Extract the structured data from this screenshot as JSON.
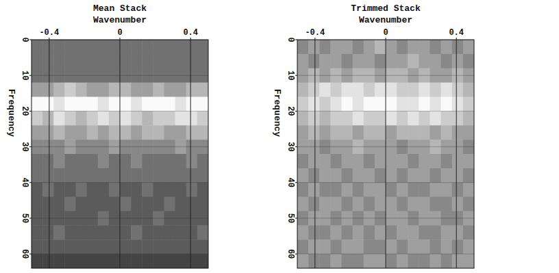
{
  "chart_data": [
    {
      "type": "heatmap",
      "title": "Mean Stack",
      "x_label": "Wavenumber",
      "y_label": "Frequency",
      "xlim": [
        -0.5,
        0.5
      ],
      "ylim": [
        0,
        64
      ],
      "xticks": [
        -0.4,
        0,
        0.4
      ],
      "yticks": [
        0,
        10,
        20,
        30,
        40,
        50,
        60
      ],
      "grid": true,
      "zlim": [
        0,
        9
      ],
      "x_bins": [
        -0.5,
        -0.4375,
        -0.375,
        -0.3125,
        -0.25,
        -0.1875,
        -0.125,
        -0.0625,
        0,
        0.0625,
        0.125,
        0.1875,
        0.25,
        0.3125,
        0.375,
        0.4375,
        0.5
      ],
      "y_bins": [
        0,
        4,
        8,
        12,
        16,
        20,
        24,
        28,
        32,
        36,
        40,
        44,
        48,
        52,
        56,
        60,
        64
      ],
      "cells": [
        [
          3,
          3,
          3,
          3,
          3,
          3,
          3,
          3,
          3,
          3,
          3,
          3,
          3,
          3,
          3,
          3
        ],
        [
          3,
          3,
          3,
          3,
          3,
          3,
          3,
          3,
          3,
          3,
          3,
          3,
          3,
          3,
          3,
          3
        ],
        [
          3,
          3,
          3,
          3,
          3,
          3,
          3,
          3,
          3,
          3,
          3,
          3,
          3,
          3,
          3,
          3
        ],
        [
          5,
          5,
          6,
          7,
          6,
          5,
          5,
          6,
          6,
          5,
          5,
          6,
          5,
          5,
          6,
          6
        ],
        [
          9,
          9,
          8,
          9,
          9,
          9,
          8,
          9,
          9,
          8,
          9,
          9,
          9,
          8,
          9,
          9
        ],
        [
          7,
          6,
          8,
          7,
          6,
          7,
          8,
          7,
          8,
          7,
          6,
          7,
          7,
          8,
          8,
          7
        ],
        [
          5,
          5,
          6,
          5,
          5,
          6,
          5,
          6,
          6,
          5,
          6,
          6,
          5,
          5,
          6,
          6
        ],
        [
          4,
          4,
          4,
          5,
          4,
          4,
          4,
          5,
          4,
          4,
          4,
          4,
          4,
          5,
          4,
          4
        ],
        [
          3,
          3,
          4,
          3,
          3,
          3,
          4,
          3,
          3,
          4,
          3,
          3,
          3,
          3,
          4,
          3
        ],
        [
          3,
          3,
          3,
          3,
          3,
          3,
          3,
          3,
          3,
          3,
          3,
          3,
          3,
          3,
          3,
          3
        ],
        [
          2,
          3,
          2,
          2,
          3,
          2,
          2,
          3,
          2,
          2,
          3,
          2,
          2,
          2,
          3,
          2
        ],
        [
          2,
          2,
          2,
          3,
          2,
          2,
          2,
          2,
          3,
          2,
          2,
          2,
          3,
          2,
          2,
          2
        ],
        [
          2,
          2,
          2,
          2,
          2,
          2,
          3,
          2,
          2,
          2,
          2,
          3,
          2,
          2,
          2,
          2
        ],
        [
          2,
          2,
          3,
          2,
          2,
          2,
          2,
          2,
          2,
          3,
          2,
          2,
          2,
          2,
          2,
          3
        ],
        [
          2,
          2,
          2,
          2,
          2,
          2,
          2,
          2,
          2,
          2,
          2,
          2,
          2,
          2,
          2,
          2
        ],
        [
          1,
          1,
          1,
          1,
          1,
          1,
          1,
          1,
          1,
          1,
          1,
          1,
          1,
          1,
          1,
          1
        ]
      ]
    },
    {
      "type": "heatmap",
      "title": "Trimmed Stack",
      "x_label": "Wavenumber",
      "y_label": "Frequency",
      "xlim": [
        -0.5,
        0.5
      ],
      "ylim": [
        0,
        64
      ],
      "xticks": [
        -0.4,
        0,
        0.4
      ],
      "yticks": [
        0,
        10,
        20,
        30,
        40,
        50,
        60
      ],
      "grid": true,
      "zlim": [
        0,
        9
      ],
      "x_bins": [
        -0.5,
        -0.4375,
        -0.375,
        -0.3125,
        -0.25,
        -0.1875,
        -0.125,
        -0.0625,
        0,
        0.0625,
        0.125,
        0.1875,
        0.25,
        0.3125,
        0.375,
        0.4375,
        0.5
      ],
      "y_bins": [
        0,
        4,
        8,
        12,
        16,
        20,
        24,
        28,
        32,
        36,
        40,
        44,
        48,
        52,
        56,
        60,
        64
      ],
      "cells": [
        [
          4,
          5,
          4,
          5,
          5,
          4,
          5,
          6,
          5,
          4,
          5,
          5,
          4,
          5,
          4,
          5
        ],
        [
          5,
          4,
          5,
          5,
          4,
          5,
          5,
          4,
          5,
          5,
          6,
          5,
          5,
          4,
          5,
          4
        ],
        [
          5,
          6,
          5,
          6,
          5,
          6,
          6,
          5,
          6,
          6,
          5,
          6,
          5,
          5,
          6,
          5
        ],
        [
          6,
          7,
          8,
          7,
          8,
          8,
          7,
          8,
          8,
          7,
          7,
          8,
          7,
          8,
          7,
          6
        ],
        [
          7,
          8,
          7,
          8,
          9,
          8,
          9,
          9,
          9,
          8,
          8,
          9,
          8,
          9,
          8,
          7
        ],
        [
          6,
          7,
          6,
          7,
          7,
          8,
          7,
          7,
          8,
          7,
          8,
          7,
          8,
          7,
          7,
          6
        ],
        [
          5,
          6,
          5,
          6,
          6,
          5,
          6,
          6,
          5,
          6,
          6,
          6,
          5,
          6,
          5,
          5
        ],
        [
          5,
          5,
          4,
          5,
          5,
          6,
          5,
          5,
          5,
          4,
          5,
          5,
          6,
          5,
          5,
          4
        ],
        [
          4,
          5,
          5,
          4,
          5,
          5,
          4,
          5,
          5,
          5,
          4,
          5,
          5,
          4,
          5,
          5
        ],
        [
          5,
          4,
          5,
          5,
          4,
          5,
          5,
          4,
          5,
          4,
          5,
          5,
          4,
          5,
          5,
          4
        ],
        [
          4,
          5,
          4,
          4,
          5,
          4,
          5,
          5,
          4,
          5,
          4,
          4,
          5,
          5,
          4,
          5
        ],
        [
          5,
          4,
          5,
          5,
          4,
          5,
          4,
          5,
          5,
          4,
          5,
          5,
          4,
          4,
          5,
          4
        ],
        [
          4,
          5,
          5,
          4,
          5,
          4,
          5,
          4,
          5,
          5,
          4,
          5,
          5,
          4,
          4,
          5
        ],
        [
          5,
          4,
          4,
          5,
          4,
          5,
          4,
          5,
          4,
          5,
          5,
          4,
          4,
          5,
          5,
          4
        ],
        [
          4,
          5,
          5,
          4,
          5,
          5,
          4,
          4,
          5,
          4,
          5,
          5,
          4,
          5,
          4,
          5
        ],
        [
          5,
          4,
          4,
          5,
          4,
          4,
          5,
          5,
          4,
          5,
          4,
          4,
          5,
          4,
          5,
          5
        ]
      ]
    }
  ]
}
